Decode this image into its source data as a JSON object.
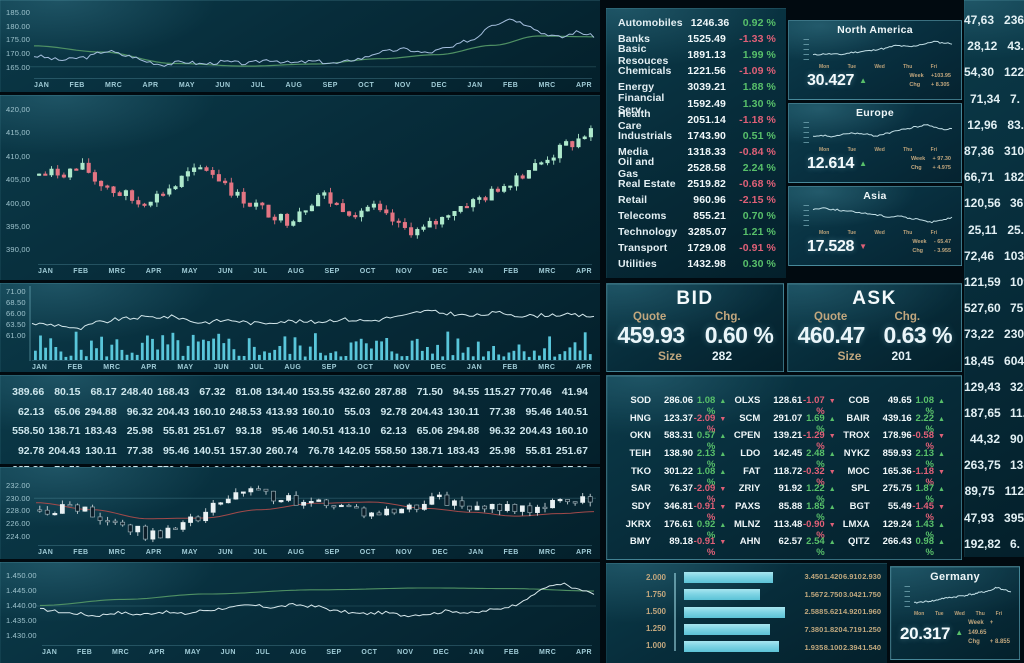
{
  "colors": {
    "positive": "#58c06a",
    "negative": "#e06077",
    "accent_cyan": "#7fd4e4",
    "label_tan": "#c2a77e",
    "text_light": "#e8f4f8"
  },
  "axes": {
    "months": [
      "JAN",
      "FEB",
      "MRC",
      "APR",
      "MAY",
      "JUN",
      "JUL",
      "AUG",
      "SEP",
      "OCT",
      "NOV",
      "DEC",
      "JAN",
      "FEB",
      "MRC",
      "APR"
    ],
    "days": [
      "Mon",
      "Tue",
      "Wed",
      "Thu",
      "Fri"
    ],
    "chart1_yticks": [
      "185.00",
      "180.00",
      "175.00",
      "170.00",
      "165.00"
    ],
    "chart2_yticks": [
      "420,00",
      "415,00",
      "410,00",
      "405,00",
      "400,00",
      "395,00",
      "390,00"
    ],
    "chart3_yticks": [
      "71.00",
      "68.50",
      "66.00",
      "63.50",
      "61.00"
    ],
    "chart5_yticks": [
      "232.00",
      "230.00",
      "228.00",
      "226.00",
      "224.00"
    ],
    "chart6_yticks": [
      "1.450.00",
      "1.445.00",
      "1.440.00",
      "1.435.00",
      "1.430.00"
    ]
  },
  "sectors": [
    {
      "name": "Automobiles",
      "value": "1246.36",
      "chg": "0.92 %",
      "dir": "up"
    },
    {
      "name": "Banks",
      "value": "1525.49",
      "chg": "-1.33 %",
      "dir": "down"
    },
    {
      "name": "Basic Resouces",
      "value": "1891.13",
      "chg": "1.99 %",
      "dir": "up"
    },
    {
      "name": "Chemicals",
      "value": "1221.56",
      "chg": "-1.09 %",
      "dir": "down"
    },
    {
      "name": "Energy",
      "value": "3039.21",
      "chg": "1.88 %",
      "dir": "up"
    },
    {
      "name": "Financial Serv.",
      "value": "1592.49",
      "chg": "1.30 %",
      "dir": "up"
    },
    {
      "name": "Health Care",
      "value": "2051.14",
      "chg": "-1.18 %",
      "dir": "down"
    },
    {
      "name": "Industrials",
      "value": "1743.90",
      "chg": "0.51 %",
      "dir": "up"
    },
    {
      "name": "Media",
      "value": "1318.33",
      "chg": "-0.84 %",
      "dir": "down"
    },
    {
      "name": "Oil and Gas",
      "value": "2528.58",
      "chg": "2.24 %",
      "dir": "up"
    },
    {
      "name": "Real Estate",
      "value": "2519.82",
      "chg": "-0.68 %",
      "dir": "down"
    },
    {
      "name": "Retail",
      "value": "960.96",
      "chg": "-2.15 %",
      "dir": "down"
    },
    {
      "name": "Telecoms",
      "value": "855.21",
      "chg": "0.70 %",
      "dir": "up"
    },
    {
      "name": "Technology",
      "value": "3285.07",
      "chg": "1.21 %",
      "dir": "up"
    },
    {
      "name": "Transport",
      "value": "1729.08",
      "chg": "-0.91 %",
      "dir": "down"
    },
    {
      "name": "Utilities",
      "value": "1432.98",
      "chg": "0.30 %",
      "dir": "up"
    }
  ],
  "regions": [
    {
      "name": "North America",
      "value": "30.427",
      "dir": "up",
      "week_label": "Week",
      "week": "+103.95",
      "chg_label": "Chg",
      "chg": "+  8.305"
    },
    {
      "name": "Europe",
      "value": "12.614",
      "dir": "up",
      "week_label": "Week",
      "week": "+  97.30",
      "chg_label": "Chg",
      "chg": "+  4.975"
    },
    {
      "name": "Asia",
      "value": "17.528",
      "dir": "down",
      "week_label": "Week",
      "week": "-  65.47",
      "chg_label": "Chg",
      "chg": "-  3.955"
    }
  ],
  "bid": {
    "title": "BID",
    "quote_label": "Quote",
    "chg_label": "Chg.",
    "quote": "459.93",
    "chg": "0.60 %",
    "size_label": "Size",
    "size": "282"
  },
  "ask": {
    "title": "ASK",
    "quote_label": "Quote",
    "chg_label": "Chg.",
    "quote": "460.47",
    "chg": "0.63 %",
    "size_label": "Size",
    "size": "201"
  },
  "matrix": [
    [
      "389.66",
      "80.15",
      "68.17",
      "248.40",
      "168.43",
      "67.32",
      "81.08",
      "134.40",
      "153.55",
      "432.60",
      "287.88",
      "71.50",
      "94.55",
      "115.27",
      "770.46",
      "41.94"
    ],
    [
      "62.13",
      "65.06",
      "294.88",
      "96.32",
      "204.43",
      "160.10",
      "248.53",
      "413.93",
      "160.10",
      "55.03",
      "92.78",
      "204.43",
      "130.11",
      "77.38",
      "95.46",
      "140.51"
    ],
    [
      "558.50",
      "138.71",
      "183.43",
      "25.98",
      "55.81",
      "251.67",
      "93.18",
      "95.46",
      "140.51",
      "413.10",
      "62.13",
      "65.06",
      "294.88",
      "96.32",
      "204.43",
      "160.10"
    ],
    [
      "92.78",
      "204.43",
      "130.11",
      "77.38",
      "95.46",
      "140.51",
      "157.30",
      "260.74",
      "76.78",
      "142.05",
      "558.50",
      "138.71",
      "183.43",
      "25.98",
      "55.81",
      "251.67"
    ],
    [
      "287.88",
      "71.50",
      "94.55",
      "115.27",
      "770.46",
      "41.94",
      "131.82",
      "105.66",
      "208.13",
      "71.54",
      "389.66",
      "80.15",
      "68.17",
      "248.40",
      "168.43",
      "67.32"
    ]
  ],
  "tickers": {
    "col1": [
      {
        "sym": "SOD",
        "val": "286.06",
        "pct": "1.08 %",
        "dir": "up"
      },
      {
        "sym": "HNG",
        "val": "123.37",
        "pct": "-2.09 %",
        "dir": "down"
      },
      {
        "sym": "OKN",
        "val": "583.31",
        "pct": "0.57 %",
        "dir": "up"
      },
      {
        "sym": "TEIH",
        "val": "138.90",
        "pct": "2.13 %",
        "dir": "up"
      },
      {
        "sym": "TKO",
        "val": "301.22",
        "pct": "1.08 %",
        "dir": "up"
      },
      {
        "sym": "SAR",
        "val": "76.37",
        "pct": "-2.09 %",
        "dir": "down"
      },
      {
        "sym": "SDY",
        "val": "346.81",
        "pct": "-0.91 %",
        "dir": "down"
      },
      {
        "sym": "JKRX",
        "val": "176.61",
        "pct": "0.92 %",
        "dir": "up"
      },
      {
        "sym": "BMY",
        "val": "89.18",
        "pct": "-0.91 %",
        "dir": "down"
      }
    ],
    "col2": [
      {
        "sym": "OLXS",
        "val": "128.61",
        "pct": "-1.07 %",
        "dir": "down"
      },
      {
        "sym": "SCM",
        "val": "291.07",
        "pct": "1.69 %",
        "dir": "up"
      },
      {
        "sym": "CPEN",
        "val": "139.21",
        "pct": "-1.29 %",
        "dir": "down"
      },
      {
        "sym": "LDO",
        "val": "142.45",
        "pct": "2.48 %",
        "dir": "up"
      },
      {
        "sym": "FAT",
        "val": "118.72",
        "pct": "-0.32 %",
        "dir": "down"
      },
      {
        "sym": "ZRIY",
        "val": "91.92",
        "pct": "1.22 %",
        "dir": "up"
      },
      {
        "sym": "PAXS",
        "val": "85.88",
        "pct": "1.85 %",
        "dir": "up"
      },
      {
        "sym": "MLNZ",
        "val": "113.48",
        "pct": "-0.90 %",
        "dir": "down"
      },
      {
        "sym": "AHN",
        "val": "62.57",
        "pct": "2.54 %",
        "dir": "up"
      }
    ],
    "col3": [
      {
        "sym": "COB",
        "val": "49.65",
        "pct": "1.08 %",
        "dir": "up"
      },
      {
        "sym": "BAIR",
        "val": "439.16",
        "pct": "2.22 %",
        "dir": "up"
      },
      {
        "sym": "TROX",
        "val": "178.96",
        "pct": "-0.58 %",
        "dir": "down"
      },
      {
        "sym": "NYKZ",
        "val": "859.93",
        "pct": "2.13 %",
        "dir": "up"
      },
      {
        "sym": "MOC",
        "val": "165.36",
        "pct": "-1.18 %",
        "dir": "down"
      },
      {
        "sym": "SPL",
        "val": "275.75",
        "pct": "1.87 %",
        "dir": "up"
      },
      {
        "sym": "BGT",
        "val": "55.49",
        "pct": "-1.45 %",
        "dir": "down"
      },
      {
        "sym": "LMXA",
        "val": "129.24",
        "pct": "1.43 %",
        "dir": "up"
      },
      {
        "sym": "QITZ",
        "val": "266.43",
        "pct": "0.98 %",
        "dir": "up"
      }
    ]
  },
  "right_list": [
    {
      "a": "47,63",
      "b": "236."
    },
    {
      "a": "28,12",
      "b": "43."
    },
    {
      "a": "54,30",
      "b": "122."
    },
    {
      "a": "71,34",
      "b": "7."
    },
    {
      "a": "12,96",
      "b": "83."
    },
    {
      "a": "87,36",
      "b": "310."
    },
    {
      "a": "66,71",
      "b": "182."
    },
    {
      "a": "120,56",
      "b": "36."
    },
    {
      "a": "25,11",
      "b": "25."
    },
    {
      "a": "72,46",
      "b": "103"
    },
    {
      "a": "121,59",
      "b": "109"
    },
    {
      "a": "527,60",
      "b": "75"
    },
    {
      "a": "73,22",
      "b": "230"
    },
    {
      "a": "18,45",
      "b": "604"
    },
    {
      "a": "129,43",
      "b": "328"
    },
    {
      "a": "187,65",
      "b": "11."
    },
    {
      "a": "44,32",
      "b": "90"
    },
    {
      "a": "263,75",
      "b": "135"
    },
    {
      "a": "89,75",
      "b": "112"
    },
    {
      "a": "47,93",
      "b": "395"
    },
    {
      "a": "192,82",
      "b": "6."
    }
  ],
  "bars": {
    "labels": [
      "2.000",
      "1.750",
      "1.500",
      "1.250",
      "1.000"
    ],
    "widths": [
      0.88,
      0.75,
      1.0,
      0.85,
      0.94
    ],
    "table": [
      [
        "3.450",
        "1.420",
        "6.910",
        "2.930"
      ],
      [
        "1.567",
        "2.750",
        "3.042",
        "1.750"
      ],
      [
        "2.588",
        "5.621",
        "4.920",
        "1.960"
      ],
      [
        "7.380",
        "1.820",
        "4.719",
        "1.250"
      ],
      [
        "1.935",
        "8.100",
        "2.394",
        "1.540"
      ]
    ]
  },
  "germany": {
    "name": "Germany",
    "value": "20.317",
    "dir": "up",
    "week_label": "Week",
    "week": "+  149.65",
    "chg_label": "Chg",
    "chg": "+  8.855"
  }
}
